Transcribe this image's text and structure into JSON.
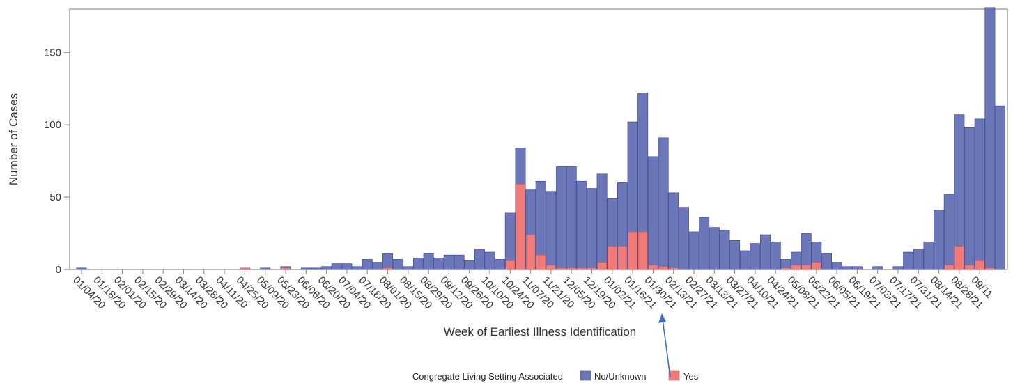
{
  "chart_data": {
    "type": "bar",
    "stacked": true,
    "xlabel": "Week of Earliest Illness Identification",
    "ylabel": "Number of Cases",
    "ylim": [
      0,
      180
    ],
    "yticks": [
      0,
      50,
      100,
      150
    ],
    "grid": false,
    "legend": {
      "title": "Congregate Living Setting Associated",
      "placement": "bottom-center",
      "entries": [
        "No/Unknown",
        "Yes"
      ]
    },
    "tick_labels": [
      "01/04/20",
      "01/18/20",
      "02/01/20",
      "02/15/20",
      "02/29/20",
      "03/14/20",
      "03/28/20",
      "04/11/20",
      "04/25/20",
      "05/09/20",
      "05/23/20",
      "06/06/20",
      "06/20/20",
      "07/04/20",
      "07/18/20",
      "08/01/20",
      "08/15/20",
      "08/29/20",
      "09/12/20",
      "09/26/20",
      "10/10/20",
      "10/24/20",
      "11/07/20",
      "11/21/20",
      "12/05/20",
      "12/19/20",
      "01/02/21",
      "01/16/21",
      "01/30/21",
      "02/13/21",
      "02/27/21",
      "03/13/21",
      "03/27/21",
      "04/10/21",
      "04/24/21",
      "05/08/21",
      "05/22/21",
      "06/05/21",
      "06/19/21",
      "07/03/21",
      "07/17/21",
      "07/31/21",
      "08/14/21",
      "08/28/21",
      "09/11"
    ],
    "series": [
      {
        "name": "No/Unknown",
        "color": "#6b77b9",
        "values": [
          1,
          0,
          0,
          0,
          0,
          0,
          0,
          0,
          0,
          0,
          0,
          0,
          0,
          0,
          0,
          0,
          0,
          0,
          1,
          0,
          1,
          0,
          1,
          1,
          2,
          4,
          4,
          2,
          7,
          5,
          10,
          7,
          2,
          8,
          11,
          8,
          10,
          10,
          6,
          14,
          12,
          7,
          33,
          25,
          31,
          51,
          51,
          70,
          70,
          60,
          55,
          61,
          33,
          44,
          76,
          96,
          75,
          89,
          52,
          43,
          26,
          36,
          29,
          27,
          20,
          13,
          18,
          24,
          19,
          6,
          9,
          22,
          14,
          11,
          5,
          2,
          2,
          0,
          2,
          0,
          2,
          12,
          14,
          19,
          41,
          49,
          91,
          95,
          98,
          180,
          113
        ]
      },
      {
        "name": "Yes",
        "color": "#f07b78",
        "values": [
          0,
          0,
          0,
          0,
          0,
          0,
          0,
          0,
          0,
          0,
          0,
          0,
          0,
          0,
          0,
          0,
          1,
          0,
          0,
          0,
          1,
          0,
          0,
          0,
          0,
          0,
          0,
          0,
          0,
          0,
          1,
          0,
          0,
          0,
          0,
          0,
          0,
          0,
          0,
          0,
          0,
          0,
          6,
          59,
          24,
          10,
          3,
          1,
          1,
          1,
          1,
          5,
          16,
          16,
          26,
          26,
          3,
          2,
          1,
          0,
          0,
          0,
          0,
          0,
          0,
          0,
          0,
          0,
          0,
          1,
          3,
          3,
          5,
          0,
          0,
          0,
          0,
          0,
          0,
          0,
          0,
          0,
          0,
          0,
          0,
          3,
          16,
          3,
          6,
          1,
          0
        ]
      }
    ]
  },
  "colors": {
    "axis": "#8c8c8c",
    "bar_edge": "#4a5294",
    "annotation_arrow": "#3a6fc4"
  },
  "annotation": {
    "icon": "arrow-up-icon"
  }
}
